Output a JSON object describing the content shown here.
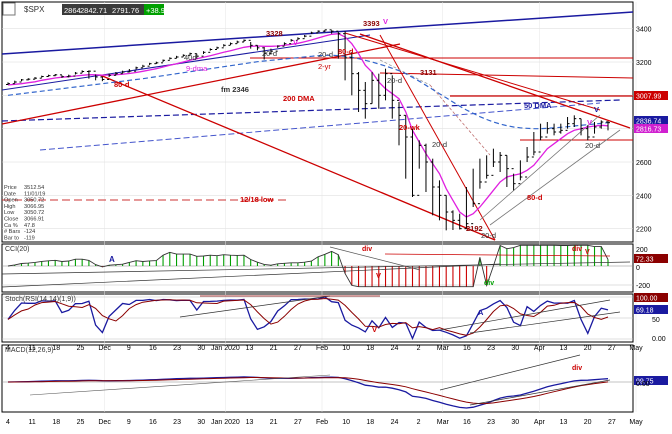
{
  "header": {
    "symbol": "$SPX",
    "values": [
      "2864",
      "2842.71",
      "2791.76",
      "+38.94"
    ]
  },
  "info_box": [
    {
      "label": "Price",
      "value": "3512.54"
    },
    {
      "label": "Date",
      "value": "11/01/19"
    },
    {
      "label": "Open",
      "value": "3050.72"
    },
    {
      "label": "High",
      "value": "3066.95"
    },
    {
      "label": "Low",
      "value": "3050.72"
    },
    {
      "label": "Close",
      "value": "3066.91"
    },
    {
      "label": "Ca %",
      "value": "47.8"
    },
    {
      "label": "# Bars",
      "value": "-124"
    },
    {
      "label": "Bar to",
      "value": "-119"
    }
  ],
  "price_badges": [
    {
      "text": "3007.99",
      "value": 3007.99,
      "color": "#cc0000"
    },
    {
      "text": "2836.74",
      "value": 2836.74,
      "color": "#1a1aa0"
    },
    {
      "text": "2816.73",
      "value": 2816.73,
      "color": "#d020d0"
    }
  ],
  "cci_badge": {
    "text": "72.33",
    "color": "#8b0000"
  },
  "stoch_badges": [
    {
      "text": "100.00",
      "color": "#8b0000"
    },
    {
      "text": "69.18",
      "color": "#1a1aa0"
    }
  ],
  "macd_badge": {
    "text": "99.75",
    "color": "#1a1aa0"
  },
  "annotations": {
    "high_3393": "3393",
    "high_3328": "3328",
    "low_3131": "3131",
    "low_2192": "2192",
    "fm": "fm 2346",
    "dma9": "9-dma",
    "dma200": "200 DMA",
    "dma50": "50 DMA",
    "d80_top": "80-d",
    "d80_left": "80-d",
    "d80_bottom": "80-d",
    "d20_a": "20-d",
    "d20_b": "20-d",
    "d20_c": "20-d",
    "d20_d": "20-d",
    "d20_e": "20-d",
    "d40": "40d",
    "yr2": "2-yr",
    "wk20": "20-wk",
    "low_1218": "12/18 low",
    "v_mark": "V",
    "div_mark": "div",
    "a_mark": "A"
  },
  "panel_labels": {
    "cci": "CCI(20)",
    "stoch": "Stoch(RSI(14,14)(1,9))",
    "macd": "MACD(12,26,9)"
  },
  "chart_data": {
    "type": "candlestick",
    "y_axis": {
      "ticks": [
        2200,
        2400,
        2600,
        2800,
        3000,
        3200,
        3400
      ],
      "range": [
        2120,
        3560
      ]
    },
    "x_axis": {
      "ticks": [
        "4",
        "11",
        "18",
        "25",
        "Dec",
        "9",
        "16",
        "23",
        "30",
        "Jan 2020",
        "13",
        "21",
        "27",
        "Feb",
        "10",
        "18",
        "24",
        "2",
        "Mar",
        "16",
        "23",
        "30",
        "Apr",
        "13",
        "20",
        "27",
        "May"
      ]
    },
    "series": [
      {
        "name": "$SPX",
        "close": [
          3070,
          3080,
          3093,
          3097,
          3103,
          3113,
          3118,
          3123,
          3112,
          3116,
          3133,
          3143,
          3145,
          3110,
          3095,
          3120,
          3130,
          3140,
          3145,
          3165,
          3175,
          3190,
          3195,
          3210,
          3222,
          3230,
          3240,
          3250,
          3235,
          3258,
          3275,
          3285,
          3300,
          3310,
          3320,
          3330,
          3300,
          3285,
          3250,
          3265,
          3295,
          3310,
          3330,
          3340,
          3355,
          3375,
          3385,
          3393,
          3385,
          3370,
          3225,
          3130,
          3030,
          2950,
          3090,
          3000,
          3130,
          2970,
          2880,
          2750,
          2400,
          2700,
          2600,
          2450,
          2400,
          2300,
          2250,
          2200,
          2230,
          2350,
          2480,
          2520,
          2600,
          2640,
          2560,
          2470,
          2510,
          2630,
          2660,
          2750,
          2800,
          2780,
          2790,
          2830,
          2860,
          2800,
          2750,
          2810,
          2840,
          2836
        ],
        "high": [
          3078,
          3088,
          3098,
          3103,
          3110,
          3118,
          3124,
          3128,
          3120,
          3124,
          3140,
          3150,
          3150,
          3125,
          3112,
          3130,
          3140,
          3148,
          3158,
          3172,
          3183,
          3195,
          3202,
          3215,
          3228,
          3237,
          3246,
          3256,
          3250,
          3265,
          3282,
          3292,
          3307,
          3317,
          3328,
          3335,
          3320,
          3300,
          3290,
          3280,
          3300,
          3318,
          3338,
          3348,
          3362,
          3382,
          3390,
          3393,
          3390,
          3380,
          3385,
          3260,
          3140,
          3080,
          3140,
          3130,
          3160,
          3120,
          2960,
          2880,
          2800,
          2730,
          2710,
          2620,
          2490,
          2400,
          2310,
          2290,
          2450,
          2560,
          2620,
          2640,
          2680,
          2660,
          2640,
          2530,
          2610,
          2690,
          2780,
          2830,
          2840,
          2830,
          2830,
          2870,
          2880,
          2860,
          2820,
          2840,
          2850,
          2845
        ],
        "low": [
          3063,
          3072,
          3085,
          3090,
          3096,
          3106,
          3112,
          3115,
          3105,
          3108,
          3125,
          3135,
          3100,
          3090,
          3085,
          3110,
          3120,
          3132,
          3138,
          3155,
          3168,
          3182,
          3188,
          3200,
          3215,
          3222,
          3232,
          3242,
          3220,
          3248,
          3268,
          3278,
          3292,
          3302,
          3312,
          3320,
          3280,
          3270,
          3215,
          3245,
          3285,
          3300,
          3322,
          3332,
          3348,
          3368,
          3378,
          3380,
          3370,
          3220,
          3090,
          3000,
          2900,
          2860,
          2950,
          2920,
          2970,
          2860,
          2700,
          2500,
          2390,
          2560,
          2420,
          2280,
          2250,
          2190,
          2192,
          2195,
          2200,
          2330,
          2440,
          2500,
          2570,
          2540,
          2450,
          2430,
          2490,
          2600,
          2640,
          2730,
          2770,
          2760,
          2770,
          2800,
          2810,
          2760,
          2730,
          2770,
          2800,
          2790
        ]
      },
      {
        "name": "9-dma",
        "values": [
          3062,
          3066,
          3070,
          3076,
          3081,
          3090,
          3097,
          3104,
          3109,
          3112,
          3116,
          3120,
          3124,
          3123,
          3121,
          3122,
          3124,
          3127,
          3131,
          3137,
          3144,
          3152,
          3160,
          3170,
          3180,
          3190,
          3200,
          3210,
          3220,
          3228,
          3238,
          3248,
          3258,
          3268,
          3278,
          3288,
          3294,
          3296,
          3294,
          3294,
          3296,
          3300,
          3306,
          3312,
          3322,
          3332,
          3344,
          3356,
          3366,
          3370,
          3350,
          3310,
          3250,
          3180,
          3140,
          3080,
          3040,
          3010,
          2980,
          2900,
          2790,
          2720,
          2650,
          2590,
          2530,
          2440,
          2370,
          2300,
          2270,
          2290,
          2330,
          2380,
          2430,
          2480,
          2510,
          2520,
          2530,
          2550,
          2580,
          2630,
          2680,
          2710,
          2740,
          2770,
          2790,
          2800,
          2810,
          2816,
          2820,
          2817
        ]
      },
      {
        "name": "50 DMA",
        "values": [
          3000,
          3005,
          3010,
          3015,
          3020,
          3025,
          3030,
          3035,
          3040,
          3045,
          3050,
          3055,
          3060,
          3065,
          3070,
          3075,
          3080,
          3085,
          3090,
          3095,
          3100,
          3106,
          3112,
          3118,
          3124,
          3130,
          3136,
          3142,
          3148,
          3154,
          3160,
          3166,
          3172,
          3178,
          3184,
          3190,
          3196,
          3202,
          3206,
          3210,
          3214,
          3218,
          3222,
          3226,
          3230,
          3234,
          3238,
          3240,
          3240,
          3238,
          3234,
          3228,
          3220,
          3210,
          3200,
          3188,
          3176,
          3162,
          3148,
          3130,
          3108,
          3085,
          3060,
          3035,
          3010,
          2985,
          2960,
          2935,
          2912,
          2892,
          2872,
          2855,
          2840,
          2828,
          2818,
          2810,
          2805,
          2802,
          2800,
          2800,
          2802,
          2805,
          2808,
          2812,
          2816,
          2820,
          2824,
          2828,
          2832,
          2836
        ]
      }
    ],
    "cci": {
      "label": "CCI(20)",
      "ticks": [
        200,
        0,
        -200
      ],
      "last": 72.33
    },
    "stoch": {
      "label": "Stoch(RSI(14,14)(1,9))",
      "ticks": [
        100,
        50,
        0
      ],
      "last": 69.18
    },
    "macd": {
      "label": "MACD(12,26,9)",
      "ticks": [
        0
      ],
      "last": 99.75
    }
  }
}
